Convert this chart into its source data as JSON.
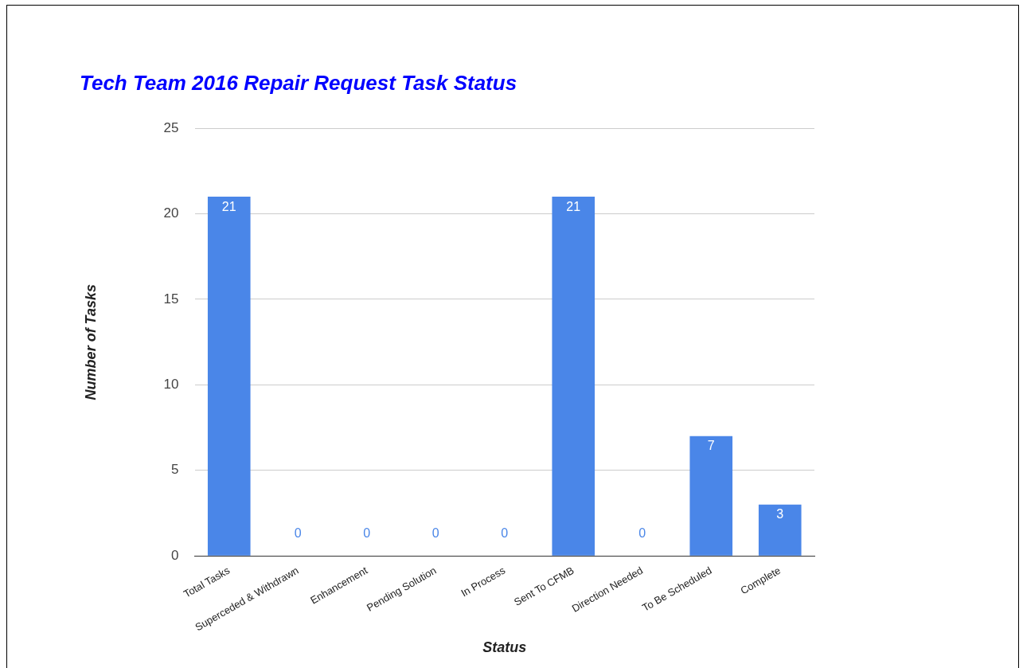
{
  "chart_data": {
    "type": "bar",
    "title": "Tech Team 2016 Repair Request Task Status",
    "xlabel": "Status",
    "ylabel": "Number of Tasks",
    "categories": [
      "Total Tasks",
      "Superceded & Withdrawn",
      "Enhancement",
      "Pending Solution",
      "In Process",
      "Sent To CFMB",
      "Direction Needed",
      "To Be Scheduled",
      "Complete"
    ],
    "values": [
      21,
      0,
      0,
      0,
      0,
      21,
      0,
      7,
      3
    ],
    "color": "#4a86e8",
    "ylim": [
      0,
      25
    ],
    "yticks": [
      0,
      5,
      10,
      15,
      20,
      25
    ],
    "grid": "y",
    "data_labels": true
  }
}
